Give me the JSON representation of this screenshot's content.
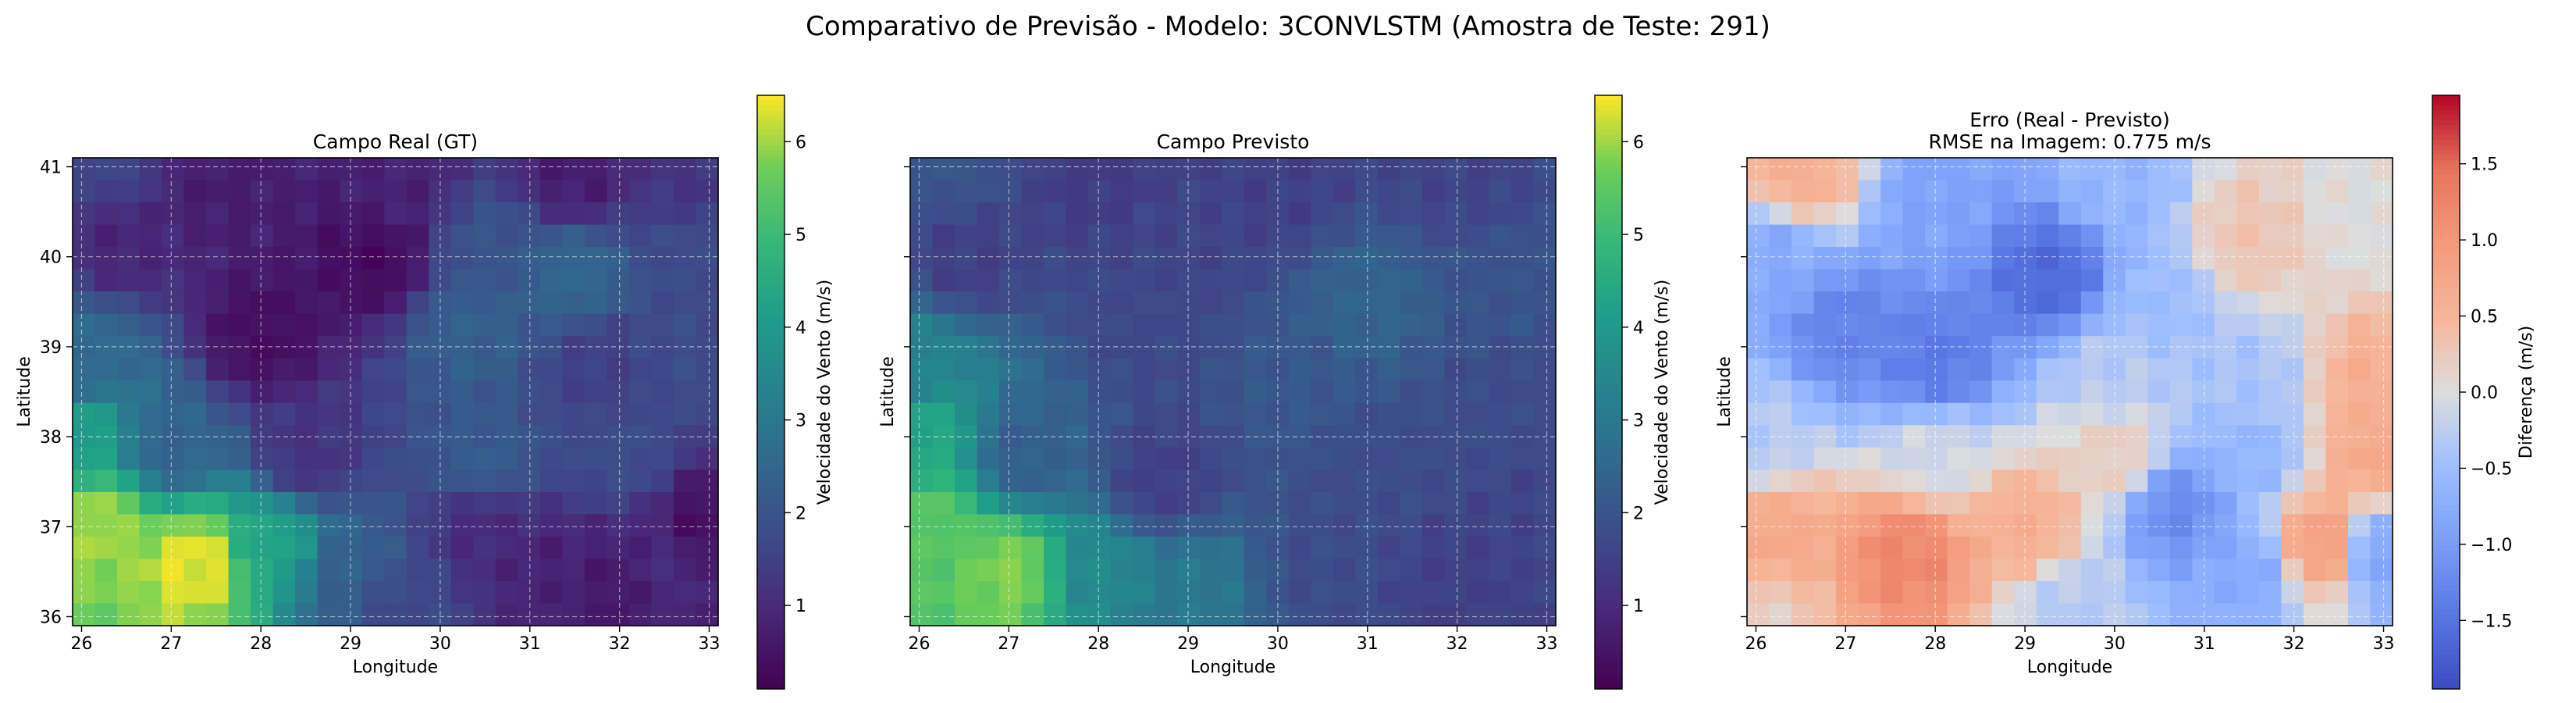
{
  "title": "Comparativo de Previsão - Modelo: 3CONVLSTM (Amostra de Teste: 291)",
  "chart_data": [
    {
      "type": "heatmap",
      "title": "Campo Real (GT)",
      "xlabel": "Longitude",
      "ylabel": "Latitude",
      "xlim": [
        25.9,
        33.1
      ],
      "ylim": [
        35.9,
        41.1
      ],
      "x_ticks": [
        26,
        27,
        28,
        29,
        30,
        31,
        32,
        33
      ],
      "y_ticks": [
        36,
        37,
        38,
        39,
        40,
        41
      ],
      "grid": true,
      "colormap": "viridis",
      "colorbar_label": "Velocidade do Vento (m/s)",
      "colorbar_range": [
        0.1,
        6.5
      ],
      "colorbar_ticks": [
        1,
        2,
        3,
        4,
        5,
        6
      ],
      "grid_cols": 29,
      "grid_rows": 21,
      "anchors": [
        {
          "lon": 26.3,
          "lat": 41.0,
          "v": 1.6
        },
        {
          "lon": 27.5,
          "lat": 40.8,
          "v": 0.7
        },
        {
          "lon": 29.5,
          "lat": 40.7,
          "v": 0.8
        },
        {
          "lon": 31.5,
          "lat": 40.9,
          "v": 0.7
        },
        {
          "lon": 32.8,
          "lat": 40.7,
          "v": 1.2
        },
        {
          "lon": 26.5,
          "lat": 40.2,
          "v": 0.9
        },
        {
          "lon": 29.3,
          "lat": 40.0,
          "v": 0.3
        },
        {
          "lon": 30.5,
          "lat": 40.1,
          "v": 2.0
        },
        {
          "lon": 31.5,
          "lat": 39.8,
          "v": 2.5
        },
        {
          "lon": 32.8,
          "lat": 40.2,
          "v": 1.8
        },
        {
          "lon": 28.0,
          "lat": 39.1,
          "v": 0.4
        },
        {
          "lon": 30.3,
          "lat": 39.2,
          "v": 2.3
        },
        {
          "lon": 26.1,
          "lat": 38.8,
          "v": 2.6
        },
        {
          "lon": 31.8,
          "lat": 38.8,
          "v": 1.5
        },
        {
          "lon": 32.8,
          "lat": 38.9,
          "v": 1.8
        },
        {
          "lon": 26.0,
          "lat": 38.0,
          "v": 4.2
        },
        {
          "lon": 27.0,
          "lat": 37.9,
          "v": 2.4
        },
        {
          "lon": 28.5,
          "lat": 37.8,
          "v": 1.2
        },
        {
          "lon": 30.5,
          "lat": 37.7,
          "v": 2.2
        },
        {
          "lon": 32.0,
          "lat": 37.8,
          "v": 1.8
        },
        {
          "lon": 26.2,
          "lat": 37.0,
          "v": 6.0
        },
        {
          "lon": 27.3,
          "lat": 36.6,
          "v": 6.4
        },
        {
          "lon": 28.1,
          "lat": 36.8,
          "v": 4.3
        },
        {
          "lon": 29.0,
          "lat": 36.5,
          "v": 2.3
        },
        {
          "lon": 30.5,
          "lat": 37.0,
          "v": 1.0
        },
        {
          "lon": 31.2,
          "lat": 36.5,
          "v": 0.8
        },
        {
          "lon": 32.0,
          "lat": 36.3,
          "v": 0.6
        },
        {
          "lon": 33.0,
          "lat": 37.0,
          "v": 0.4
        },
        {
          "lon": 29.5,
          "lat": 36.1,
          "v": 1.7
        },
        {
          "lon": 32.5,
          "lat": 36.5,
          "v": 1.0
        }
      ]
    },
    {
      "type": "heatmap",
      "title": "Campo Previsto",
      "xlabel": "Longitude",
      "ylabel": "Latitude",
      "xlim": [
        25.9,
        33.1
      ],
      "ylim": [
        35.9,
        41.1
      ],
      "x_ticks": [
        26,
        27,
        28,
        29,
        30,
        31,
        32,
        33
      ],
      "y_ticks": [
        36,
        37,
        38,
        39,
        40,
        41
      ],
      "grid": true,
      "colormap": "viridis",
      "colorbar_label": "Velocidade do Vento (m/s)",
      "colorbar_range": [
        0.1,
        6.5
      ],
      "colorbar_ticks": [
        1,
        2,
        3,
        4,
        5,
        6
      ],
      "grid_cols": 29,
      "grid_rows": 21,
      "anchors": [
        {
          "lon": 26.3,
          "lat": 41.0,
          "v": 2.0
        },
        {
          "lon": 28.0,
          "lat": 40.9,
          "v": 1.4
        },
        {
          "lon": 30.0,
          "lat": 40.8,
          "v": 1.5
        },
        {
          "lon": 32.0,
          "lat": 40.9,
          "v": 1.6
        },
        {
          "lon": 26.5,
          "lat": 40.0,
          "v": 1.5
        },
        {
          "lon": 29.0,
          "lat": 40.2,
          "v": 1.6
        },
        {
          "lon": 31.0,
          "lat": 39.5,
          "v": 2.4
        },
        {
          "lon": 32.5,
          "lat": 39.6,
          "v": 2.0
        },
        {
          "lon": 26.0,
          "lat": 38.8,
          "v": 3.3
        },
        {
          "lon": 28.5,
          "lat": 39.2,
          "v": 1.7
        },
        {
          "lon": 30.2,
          "lat": 38.6,
          "v": 2.1
        },
        {
          "lon": 32.5,
          "lat": 38.5,
          "v": 1.8
        },
        {
          "lon": 26.0,
          "lat": 38.0,
          "v": 4.4
        },
        {
          "lon": 27.2,
          "lat": 37.8,
          "v": 2.3
        },
        {
          "lon": 28.7,
          "lat": 37.5,
          "v": 1.5
        },
        {
          "lon": 31.0,
          "lat": 37.6,
          "v": 1.8
        },
        {
          "lon": 26.1,
          "lat": 37.0,
          "v": 5.4
        },
        {
          "lon": 27.0,
          "lat": 36.5,
          "v": 5.8
        },
        {
          "lon": 28.0,
          "lat": 36.5,
          "v": 3.5
        },
        {
          "lon": 29.0,
          "lat": 36.3,
          "v": 3.0
        },
        {
          "lon": 30.5,
          "lat": 36.5,
          "v": 1.8
        },
        {
          "lon": 32.0,
          "lat": 36.3,
          "v": 1.5
        },
        {
          "lon": 33.0,
          "lat": 37.0,
          "v": 1.6
        }
      ]
    },
    {
      "type": "heatmap",
      "title": "Erro (Real - Previsto)",
      "subtitle": "RMSE na Imagem: 0.775 m/s",
      "xlabel": "Longitude",
      "ylabel": "Latitude",
      "xlim": [
        25.9,
        33.1
      ],
      "ylim": [
        35.9,
        41.1
      ],
      "x_ticks": [
        26,
        27,
        28,
        29,
        30,
        31,
        32,
        33
      ],
      "y_ticks": [
        36,
        37,
        38,
        39,
        40,
        41
      ],
      "grid": true,
      "colormap": "coolwarm",
      "colorbar_label": "Diferença (m/s)",
      "colorbar_range": [
        -1.95,
        1.95
      ],
      "colorbar_ticks": [
        -1.5,
        -1.0,
        -0.5,
        0.0,
        0.5,
        1.0,
        1.5
      ],
      "grid_cols": 29,
      "grid_rows": 21,
      "anchors": [
        {
          "lon": 26.5,
          "lat": 40.9,
          "v": 0.6
        },
        {
          "lon": 28.0,
          "lat": 40.6,
          "v": -0.9
        },
        {
          "lon": 30.0,
          "lat": 40.8,
          "v": -0.6
        },
        {
          "lon": 31.5,
          "lat": 40.2,
          "v": 0.3
        },
        {
          "lon": 32.8,
          "lat": 40.5,
          "v": 0.0
        },
        {
          "lon": 26.2,
          "lat": 40.0,
          "v": -0.8
        },
        {
          "lon": 29.3,
          "lat": 39.8,
          "v": -1.6
        },
        {
          "lon": 30.5,
          "lat": 39.5,
          "v": -0.5
        },
        {
          "lon": 27.0,
          "lat": 39.2,
          "v": -1.3
        },
        {
          "lon": 28.0,
          "lat": 38.8,
          "v": -1.4
        },
        {
          "lon": 30.0,
          "lat": 38.7,
          "v": -0.3
        },
        {
          "lon": 31.5,
          "lat": 38.6,
          "v": -0.4
        },
        {
          "lon": 32.9,
          "lat": 38.6,
          "v": 0.6
        },
        {
          "lon": 26.0,
          "lat": 38.0,
          "v": -0.3
        },
        {
          "lon": 28.0,
          "lat": 37.8,
          "v": -0.1
        },
        {
          "lon": 30.0,
          "lat": 37.8,
          "v": 0.2
        },
        {
          "lon": 31.5,
          "lat": 37.8,
          "v": -0.6
        },
        {
          "lon": 32.9,
          "lat": 37.8,
          "v": 0.7
        },
        {
          "lon": 26.2,
          "lat": 36.9,
          "v": 0.7
        },
        {
          "lon": 27.7,
          "lat": 36.7,
          "v": 1.2
        },
        {
          "lon": 29.0,
          "lat": 37.0,
          "v": 0.6
        },
        {
          "lon": 30.7,
          "lat": 37.2,
          "v": -1.2
        },
        {
          "lon": 31.5,
          "lat": 36.5,
          "v": -0.8
        },
        {
          "lon": 32.3,
          "lat": 36.8,
          "v": 0.9
        },
        {
          "lon": 33.0,
          "lat": 36.7,
          "v": -0.9
        },
        {
          "lon": 29.5,
          "lat": 36.1,
          "v": -0.3
        },
        {
          "lon": 26.0,
          "lat": 36.0,
          "v": 0.2
        }
      ]
    }
  ]
}
